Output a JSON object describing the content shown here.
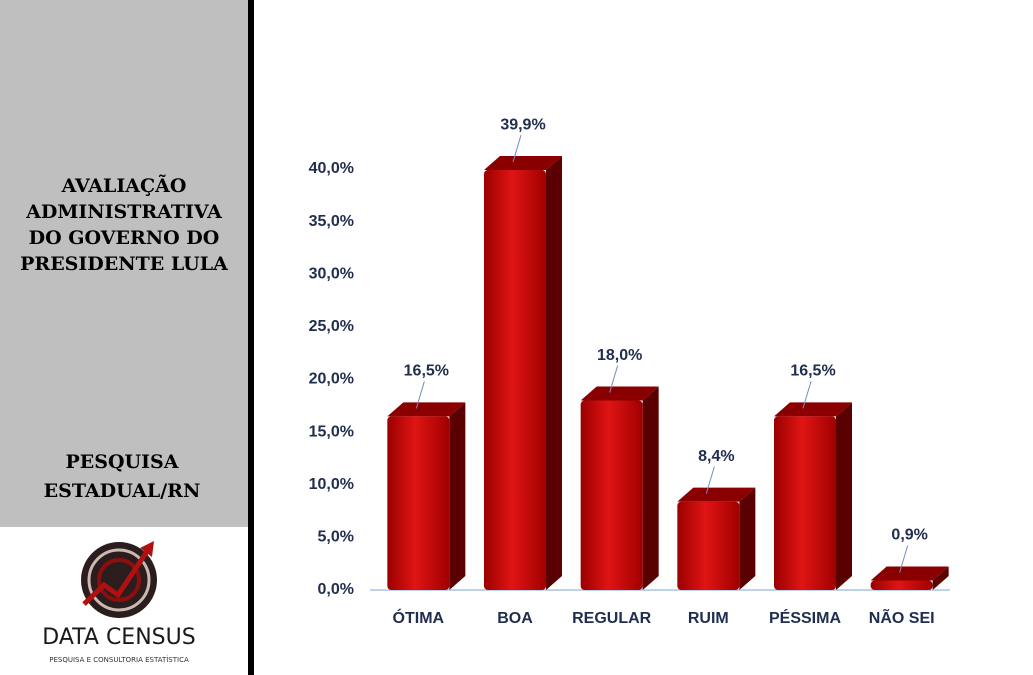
{
  "sidebar": {
    "title_lines": [
      "AVALIAÇÃO",
      "ADMINISTRATIVA",
      "DO GOVERNO DO",
      "PRESIDENTE LULA"
    ],
    "survey_lines": [
      "PESQUISA",
      "ESTADUAL/RN"
    ],
    "logo": {
      "name": "DATA CENSUS",
      "tagline": "PESQUISA E CONSULTORIA ESTATÍSTICA"
    }
  },
  "chart_data": {
    "type": "bar3d",
    "categories": [
      "ÓTIMA",
      "BOA",
      "REGULAR",
      "RUIM",
      "PÉSSIMA",
      "NÃO SEI"
    ],
    "values": [
      16.5,
      39.9,
      18.0,
      8.4,
      16.5,
      0.9
    ],
    "value_labels": [
      "16,5%",
      "39,9%",
      "18,0%",
      "8,4%",
      "16,5%",
      "0,9%"
    ],
    "color": "#c40000",
    "ylim": [
      0,
      40
    ],
    "yticks": [
      {
        "value": 0,
        "label": "0,0%"
      },
      {
        "value": 5,
        "label": "5,0%"
      },
      {
        "value": 10,
        "label": "10,0%"
      },
      {
        "value": 15,
        "label": "15,0%"
      },
      {
        "value": 20,
        "label": "20,0%"
      },
      {
        "value": 25,
        "label": "25,0%"
      },
      {
        "value": 30,
        "label": "30,0%"
      },
      {
        "value": 35,
        "label": "35,0%"
      },
      {
        "value": 40,
        "label": "40,0%"
      }
    ],
    "grid": false
  }
}
